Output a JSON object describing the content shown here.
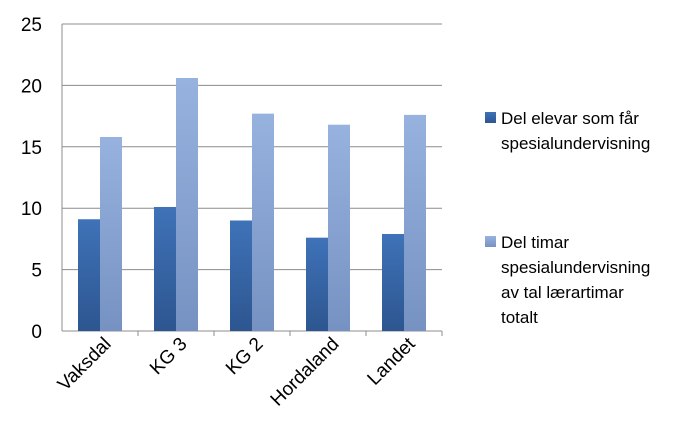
{
  "chart_data": {
    "type": "bar",
    "categories": [
      "Vaksdal",
      "KG 3",
      "KG 2",
      "Hordaland",
      "Landet"
    ],
    "series": [
      {
        "name": "Del elevar som får spesialundervisning",
        "name_lines": [
          "Del elevar som får",
          "spesialundervisning"
        ],
        "color": "#3B6AAE",
        "values": [
          9.1,
          10.1,
          9.0,
          7.6,
          7.9
        ]
      },
      {
        "name": "Del timar spesialundervisning av tal lærartimar totalt",
        "name_lines": [
          "Del timar",
          "spesialundervisning",
          "av tal lærartimar",
          "totalt"
        ],
        "color": "#8EA8D6",
        "values": [
          15.8,
          20.6,
          17.7,
          16.8,
          17.6
        ]
      }
    ],
    "y_ticks": [
      "0",
      "5",
      "10",
      "15",
      "20",
      "25"
    ],
    "ylim": [
      0,
      25
    ],
    "grid": true,
    "legend_position": "right"
  }
}
